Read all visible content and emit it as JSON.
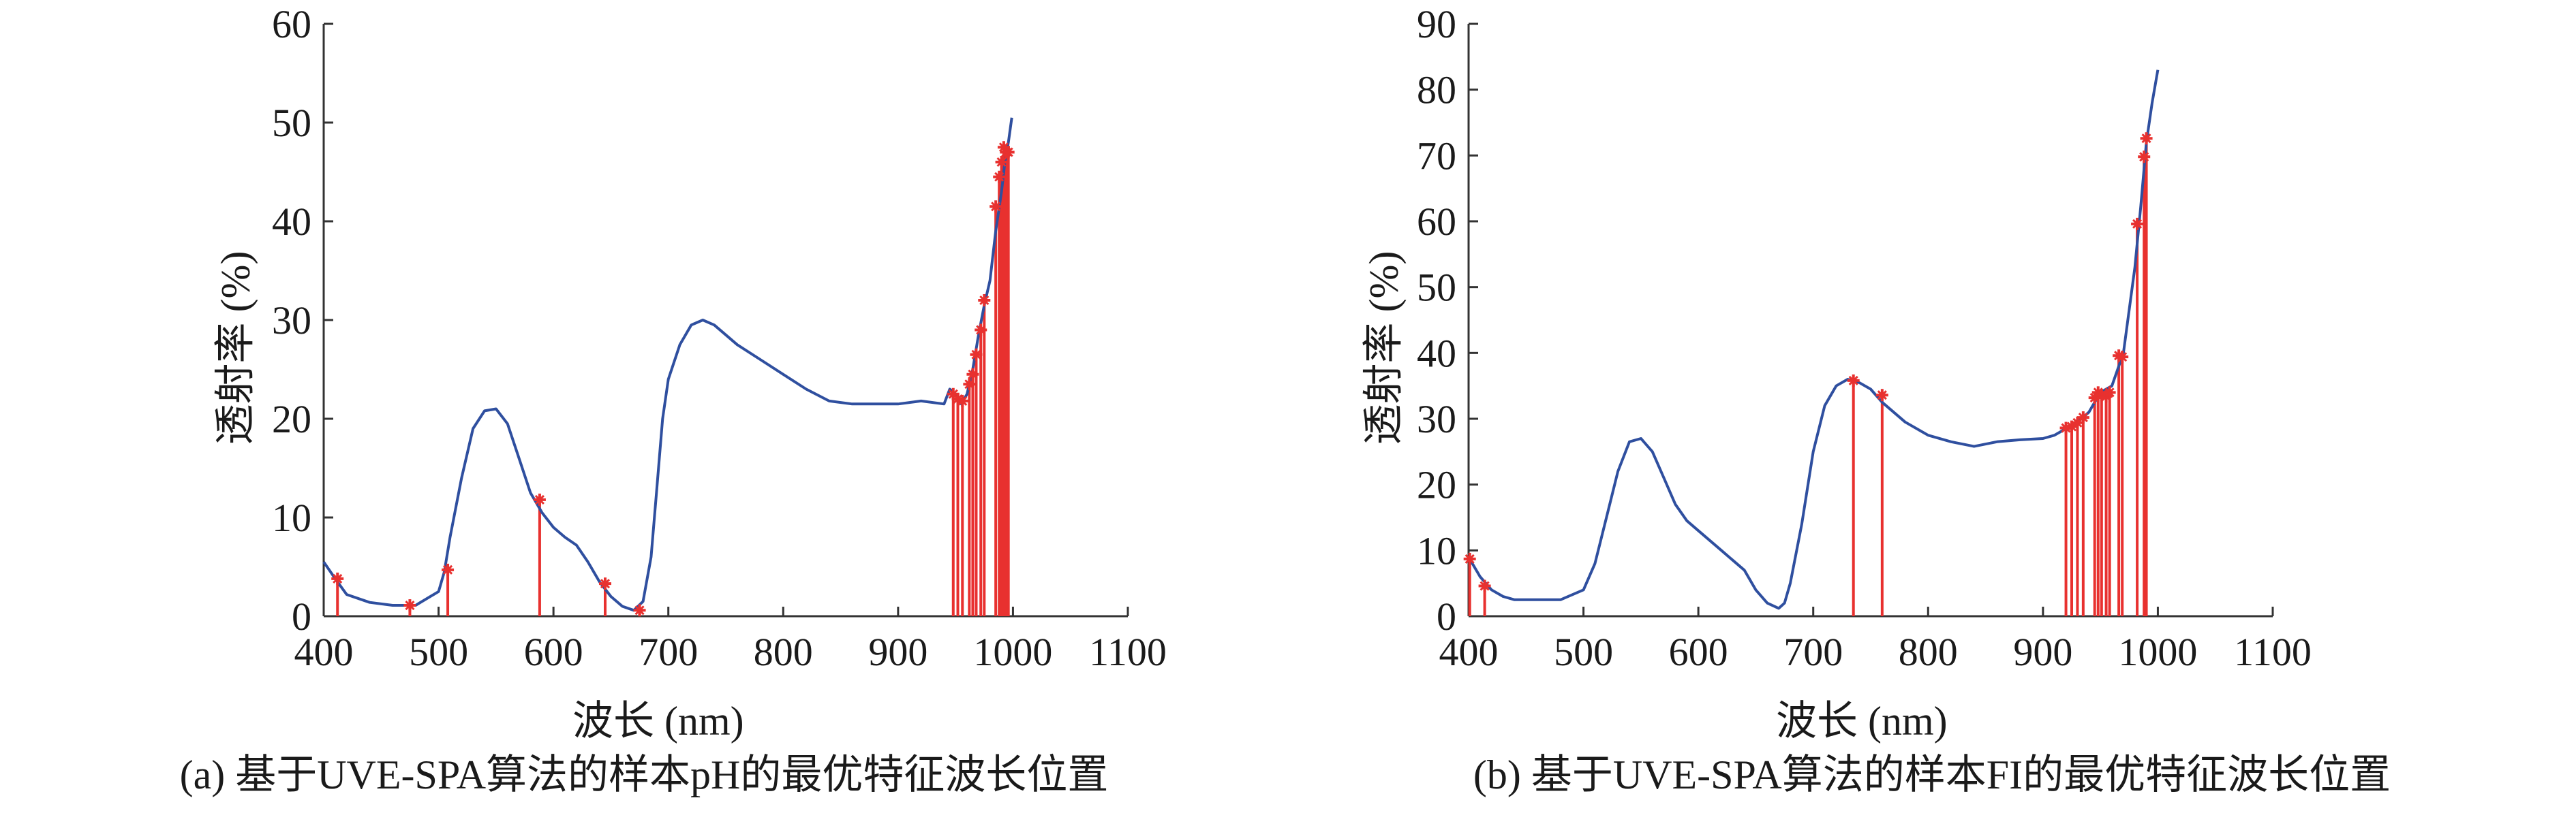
{
  "chart_data": [
    {
      "type": "line",
      "panel": "a",
      "caption": "(a) 基于UVE-SPA算法的样本pH的最优特征波长位置",
      "xlabel": "波长 (nm)",
      "ylabel": "透射率 (%)",
      "xlim": [
        400,
        1100
      ],
      "ylim": [
        0,
        60
      ],
      "xticks": [
        400,
        500,
        600,
        700,
        800,
        900,
        1000,
        1100
      ],
      "yticks": [
        0,
        10,
        20,
        30,
        40,
        50,
        60
      ],
      "grid": false,
      "colors": {
        "spectrum": "#2f4f9f",
        "selected": "#e8312f"
      },
      "series": [
        {
          "x": [
            400,
            410,
            420,
            440,
            460,
            480,
            500,
            505,
            510,
            520,
            530,
            540,
            550,
            560,
            570,
            580,
            590,
            600,
            610,
            620,
            630,
            640,
            650,
            660,
            670,
            678,
            685,
            690,
            695,
            700,
            710,
            720,
            730,
            740,
            750,
            760,
            780,
            800,
            820,
            840,
            860,
            880,
            900,
            920,
            940,
            945,
            950,
            955,
            960,
            965,
            970,
            975,
            980,
            985,
            990,
            993,
            996,
            999
          ],
          "values": [
            5.5,
            3.8,
            2.2,
            1.4,
            1.1,
            1.1,
            2.5,
            4.5,
            8,
            14,
            19,
            20.8,
            21,
            19.5,
            16,
            12.5,
            10.5,
            9,
            8,
            7.2,
            5.5,
            3.5,
            2,
            1,
            0.6,
            1.5,
            6,
            13,
            20,
            24,
            27.5,
            29.5,
            30,
            29.5,
            28.5,
            27.5,
            26,
            24.5,
            23,
            21.8,
            21.5,
            21.5,
            21.5,
            21.8,
            21.5,
            23,
            22.5,
            21.5,
            22.5,
            25,
            28.5,
            31.5,
            34,
            39,
            43,
            46,
            48,
            50.5
          ]
        }
      ],
      "selected_wavelengths": [
        {
          "x": 412,
          "y": 3.8
        },
        {
          "x": 475,
          "y": 1.1
        },
        {
          "x": 508,
          "y": 4.7
        },
        {
          "x": 588,
          "y": 11.8
        },
        {
          "x": 645,
          "y": 3.3
        },
        {
          "x": 675,
          "y": 0.6
        },
        {
          "x": 948,
          "y": 22.5
        },
        {
          "x": 952,
          "y": 22
        },
        {
          "x": 956,
          "y": 21.8
        },
        {
          "x": 962,
          "y": 23.5
        },
        {
          "x": 965,
          "y": 24.5
        },
        {
          "x": 968,
          "y": 26.5
        },
        {
          "x": 972,
          "y": 29
        },
        {
          "x": 975,
          "y": 32
        },
        {
          "x": 985,
          "y": 41.5
        },
        {
          "x": 988,
          "y": 44.5
        },
        {
          "x": 990,
          "y": 46
        },
        {
          "x": 992,
          "y": 47.5
        },
        {
          "x": 994,
          "y": 47
        },
        {
          "x": 996,
          "y": 47
        }
      ]
    },
    {
      "type": "line",
      "panel": "b",
      "caption": "(b) 基于UVE-SPA算法的样本FI的最优特征波长位置",
      "xlabel": "波长 (nm)",
      "ylabel": "透射率 (%)",
      "xlim": [
        400,
        1100
      ],
      "ylim": [
        0,
        90
      ],
      "xticks": [
        400,
        500,
        600,
        700,
        800,
        900,
        1000,
        1100
      ],
      "yticks": [
        0,
        10,
        20,
        30,
        40,
        50,
        60,
        70,
        80,
        90
      ],
      "grid": false,
      "colors": {
        "spectrum": "#2f4f9f",
        "selected": "#e8312f"
      },
      "series": [
        {
          "x": [
            400,
            405,
            410,
            420,
            430,
            440,
            460,
            480,
            500,
            510,
            520,
            530,
            540,
            550,
            560,
            570,
            580,
            590,
            600,
            620,
            630,
            640,
            650,
            660,
            670,
            675,
            680,
            690,
            700,
            710,
            720,
            730,
            740,
            750,
            760,
            780,
            800,
            820,
            840,
            860,
            880,
            900,
            910,
            920,
            930,
            940,
            950,
            960,
            970,
            980,
            985,
            990,
            995,
            1000
          ],
          "values": [
            9,
            7.5,
            6,
            4,
            3,
            2.5,
            2.5,
            2.5,
            4,
            8,
            15,
            22,
            26.5,
            27,
            25,
            21,
            17,
            14.5,
            13,
            10,
            8.5,
            7,
            4,
            2,
            1.2,
            2,
            5,
            14,
            25,
            32,
            35,
            36,
            35.5,
            34.5,
            32.5,
            29.5,
            27.5,
            26.5,
            25.8,
            26.5,
            26.8,
            27,
            27.5,
            28.5,
            29.5,
            31,
            34,
            35,
            40,
            53,
            62,
            72,
            78,
            83
          ]
        }
      ],
      "selected_wavelengths": [
        {
          "x": 401,
          "y": 8.7
        },
        {
          "x": 414,
          "y": 4.6
        },
        {
          "x": 735,
          "y": 35.8
        },
        {
          "x": 760,
          "y": 33.6
        },
        {
          "x": 920,
          "y": 28.6
        },
        {
          "x": 925,
          "y": 28.8
        },
        {
          "x": 930,
          "y": 29.4
        },
        {
          "x": 935,
          "y": 30.2
        },
        {
          "x": 945,
          "y": 33.2
        },
        {
          "x": 948,
          "y": 34
        },
        {
          "x": 951,
          "y": 33.6
        },
        {
          "x": 955,
          "y": 33.4
        },
        {
          "x": 958,
          "y": 34
        },
        {
          "x": 966,
          "y": 39.6
        },
        {
          "x": 969,
          "y": 39.4
        },
        {
          "x": 982,
          "y": 59.6
        },
        {
          "x": 988,
          "y": 69.8
        },
        {
          "x": 990,
          "y": 72.6
        }
      ]
    }
  ]
}
